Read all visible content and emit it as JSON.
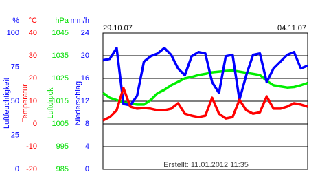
{
  "chart_data": {
    "type": "line",
    "x_start_label": "29.10.07",
    "x_end_label": "04.11.07",
    "footer": "Erstellt: 11.01.2012 11:35",
    "grid": true,
    "axes": [
      {
        "unit": "%",
        "label": "Luftfeuchtigkeit",
        "color": "#0000ff",
        "ylim": [
          0,
          100
        ],
        "yticks": [
          0,
          25,
          50,
          75,
          100
        ]
      },
      {
        "unit": "°C",
        "label": "Temperatur",
        "color": "#ff0000",
        "ylim": [
          -20,
          40
        ],
        "yticks": [
          -20,
          -10,
          0,
          10,
          20,
          30,
          40
        ]
      },
      {
        "unit": "hPa",
        "label": "Luftdruck",
        "color": "#00dd00",
        "ylim": [
          985,
          1045
        ],
        "yticks": [
          985,
          995,
          1005,
          1015,
          1025,
          1035,
          1045
        ]
      },
      {
        "unit": "mm/h",
        "label": "Niederschlag",
        "color": "#0000ff",
        "ylim": [
          0,
          24
        ],
        "yticks": [
          0,
          4,
          8,
          12,
          16,
          20,
          24
        ]
      }
    ],
    "series": [
      {
        "name": "Luftdruck",
        "axis": 2,
        "color": "#00ee00",
        "values": [
          1018.6,
          1016.5,
          1015.5,
          1014.5,
          1014,
          1013.5,
          1013.5,
          1015.5,
          1018.5,
          1020,
          1022,
          1023.5,
          1025,
          1025.6,
          1026.5,
          1027,
          1027.7,
          1028,
          1028.3,
          1028.5,
          1028,
          1027.5,
          1027,
          1026.5,
          1024,
          1022,
          1021.5,
          1021,
          1021.2,
          1022,
          1023
        ]
      },
      {
        "name": "Luftfeuchtigkeit",
        "axis": 0,
        "color": "#0000ff",
        "values": [
          80,
          81,
          89,
          48,
          47,
          54,
          79,
          83,
          85,
          89,
          84,
          74,
          69,
          83,
          86,
          85,
          64,
          56,
          83,
          84,
          51,
          69,
          84,
          85,
          64,
          74,
          79,
          84,
          86,
          74,
          76
        ]
      },
      {
        "name": "Temperatur",
        "axis": 1,
        "color": "#ff0000",
        "values": [
          1.5,
          3,
          6,
          15.8,
          7.6,
          6.7,
          7,
          6.7,
          6,
          6,
          6.7,
          9.1,
          4.5,
          3.6,
          3,
          3.6,
          11.5,
          4.5,
          2.4,
          3,
          10.6,
          6,
          4.5,
          5.1,
          12.1,
          6.7,
          6.7,
          7.6,
          9.1,
          8.5,
          7.6
        ]
      }
    ]
  }
}
